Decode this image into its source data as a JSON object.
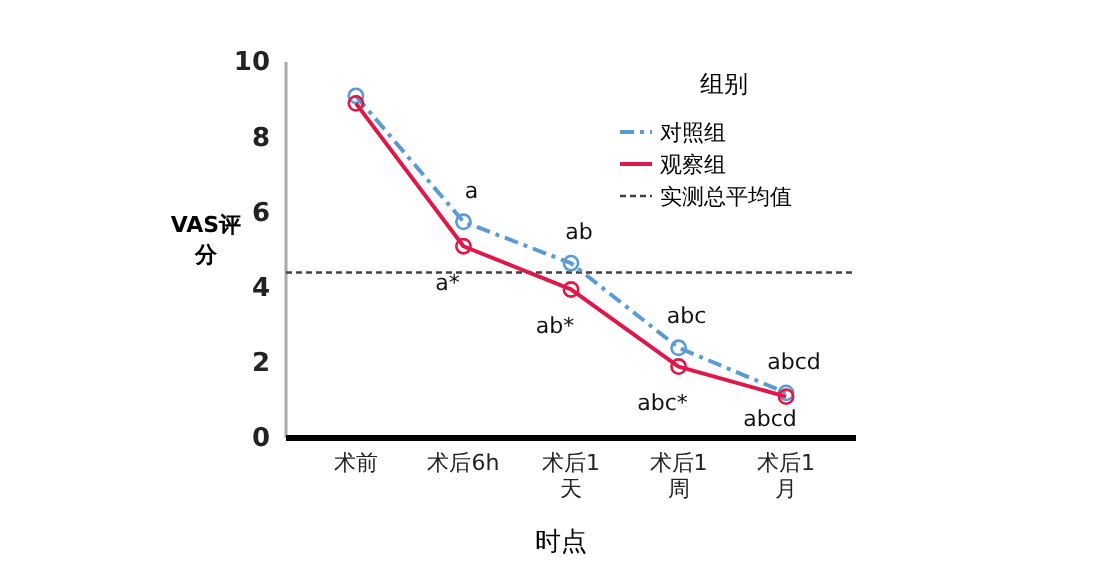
{
  "chart_data": {
    "type": "line",
    "xlabel": "时点",
    "ylabel": "VAS评分",
    "legend_title": "组别",
    "categories": [
      "术前",
      "术后6h",
      "术后1天",
      "术后1周",
      "术后1月"
    ],
    "series": [
      {
        "name": "对照组",
        "color": "#5b9bd5",
        "line_style": "dashed",
        "values": [
          9.1,
          5.75,
          4.65,
          2.4,
          1.2
        ]
      },
      {
        "name": "观察组",
        "color": "#e0184a",
        "line_style": "solid",
        "values": [
          8.9,
          5.1,
          3.95,
          1.9,
          1.1
        ]
      }
    ],
    "ylim": [
      0,
      10
    ],
    "yticks": [
      0,
      2,
      4,
      6,
      8,
      10
    ],
    "marker": "circle",
    "legend": "top right",
    "grid": false,
    "ref_lines": [
      {
        "axis": "y",
        "value": 4.4,
        "label": "实测总平均值",
        "color": "#404040",
        "line_style": "dotted"
      }
    ],
    "annotations": [
      {
        "text": "a",
        "x": "术后6h",
        "y": 5.75
      },
      {
        "text": "a*",
        "x": "术后6h",
        "y": 5.1
      },
      {
        "text": "ab",
        "x": "术后1天",
        "y": 4.65
      },
      {
        "text": "ab*",
        "x": "术后1天",
        "y": 3.95
      },
      {
        "text": "abc",
        "x": "术后1周",
        "y": 2.4
      },
      {
        "text": "abc*",
        "x": "术后1周",
        "y": 1.9
      },
      {
        "text": "abcd",
        "x": "术后1月",
        "y": 1.2
      },
      {
        "text": "abcd",
        "x": "术后1月",
        "y": 1.1
      }
    ]
  }
}
